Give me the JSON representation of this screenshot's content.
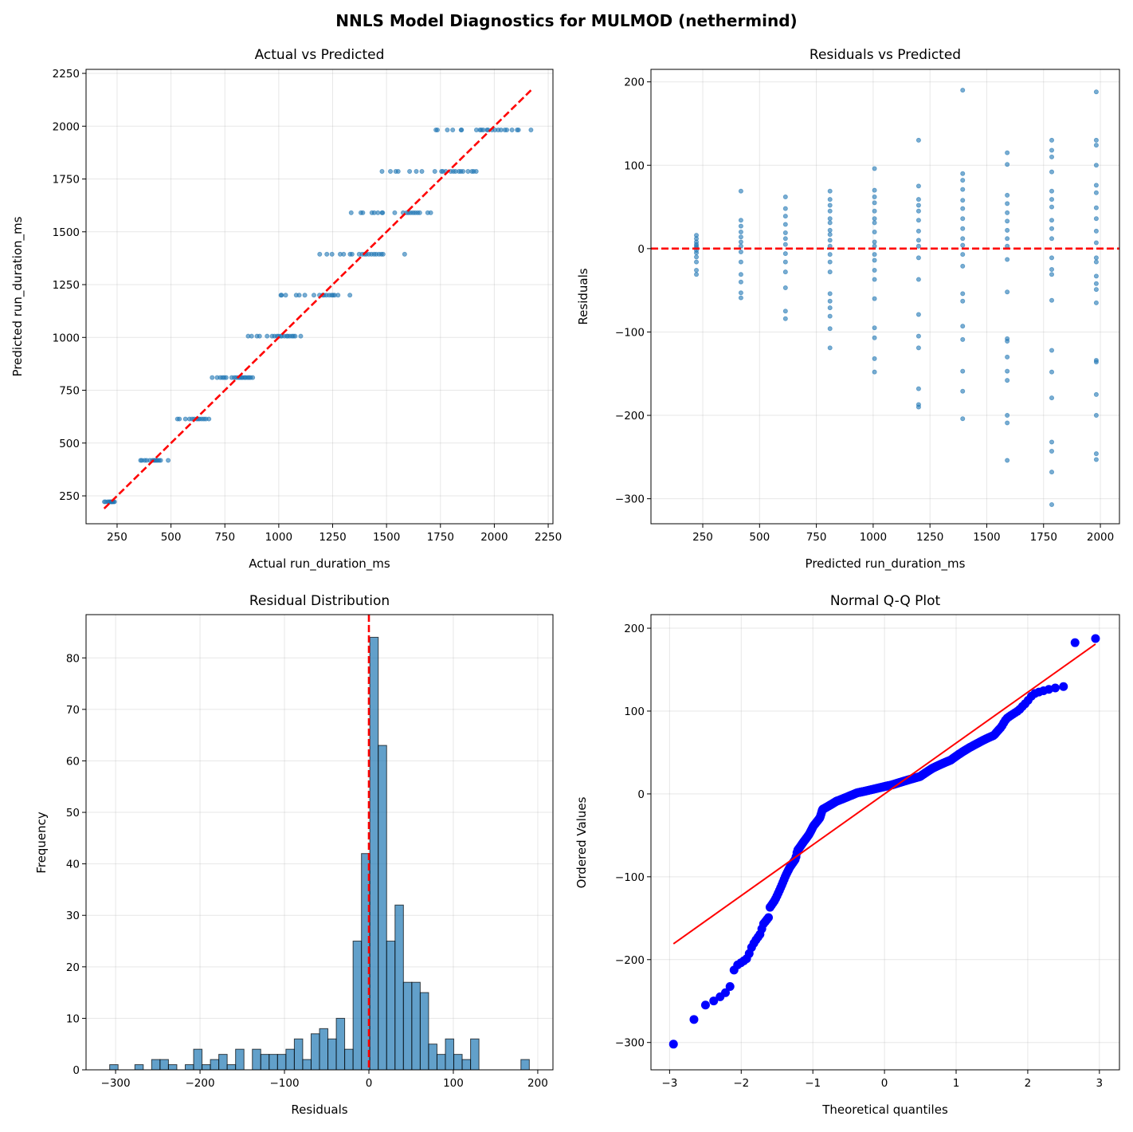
{
  "figure": {
    "title": "NNLS Model Diagnostics for MULMOD (nethermind)"
  },
  "colors": {
    "points": "#1f77b4",
    "reference": "#ff0000",
    "qq_points": "#0000ff",
    "grid": "#b0b0b0"
  },
  "observations_note_fields": [
    "predicted_run_duration_ms",
    "residual"
  ],
  "observations": [
    [
      222,
      16
    ],
    [
      222,
      12
    ],
    [
      222,
      8
    ],
    [
      222,
      5
    ],
    [
      222,
      3
    ],
    [
      222,
      1
    ],
    [
      222,
      -2
    ],
    [
      222,
      -5
    ],
    [
      222,
      -10
    ],
    [
      222,
      -16
    ],
    [
      222,
      -26
    ],
    [
      222,
      -31
    ],
    [
      418,
      69
    ],
    [
      418,
      34
    ],
    [
      418,
      27
    ],
    [
      418,
      20
    ],
    [
      418,
      14
    ],
    [
      418,
      8
    ],
    [
      418,
      3
    ],
    [
      418,
      -4
    ],
    [
      418,
      -16
    ],
    [
      418,
      -31
    ],
    [
      418,
      -40
    ],
    [
      418,
      -53
    ],
    [
      418,
      -59
    ],
    [
      614,
      62
    ],
    [
      614,
      48
    ],
    [
      614,
      39
    ],
    [
      614,
      29
    ],
    [
      614,
      19
    ],
    [
      614,
      12
    ],
    [
      614,
      5
    ],
    [
      614,
      -6
    ],
    [
      614,
      -16
    ],
    [
      614,
      -28
    ],
    [
      614,
      -47
    ],
    [
      614,
      -75
    ],
    [
      614,
      -84
    ],
    [
      810,
      69
    ],
    [
      810,
      59
    ],
    [
      810,
      52
    ],
    [
      810,
      45
    ],
    [
      810,
      36
    ],
    [
      810,
      31
    ],
    [
      810,
      22
    ],
    [
      810,
      17
    ],
    [
      810,
      10
    ],
    [
      810,
      3
    ],
    [
      810,
      -7
    ],
    [
      810,
      -16
    ],
    [
      810,
      -28
    ],
    [
      810,
      -54
    ],
    [
      810,
      -63
    ],
    [
      810,
      -71
    ],
    [
      810,
      -81
    ],
    [
      810,
      -96
    ],
    [
      810,
      -119
    ],
    [
      1006,
      96
    ],
    [
      1006,
      70
    ],
    [
      1006,
      62
    ],
    [
      1006,
      55
    ],
    [
      1006,
      45
    ],
    [
      1006,
      36
    ],
    [
      1006,
      31
    ],
    [
      1006,
      20
    ],
    [
      1006,
      8
    ],
    [
      1006,
      3
    ],
    [
      1006,
      -7
    ],
    [
      1006,
      -14
    ],
    [
      1006,
      -26
    ],
    [
      1006,
      -37
    ],
    [
      1006,
      -60
    ],
    [
      1006,
      -95
    ],
    [
      1006,
      -107
    ],
    [
      1006,
      -132
    ],
    [
      1006,
      -148
    ],
    [
      1200,
      130
    ],
    [
      1200,
      75
    ],
    [
      1200,
      59
    ],
    [
      1200,
      52
    ],
    [
      1200,
      45
    ],
    [
      1200,
      34
    ],
    [
      1200,
      21
    ],
    [
      1200,
      10
    ],
    [
      1200,
      3
    ],
    [
      1200,
      -11
    ],
    [
      1200,
      -37
    ],
    [
      1200,
      -79
    ],
    [
      1200,
      -105
    ],
    [
      1200,
      -119
    ],
    [
      1200,
      -168
    ],
    [
      1200,
      -187
    ],
    [
      1200,
      -190
    ],
    [
      1394,
      190
    ],
    [
      1394,
      90
    ],
    [
      1394,
      82
    ],
    [
      1394,
      71
    ],
    [
      1394,
      58
    ],
    [
      1394,
      48
    ],
    [
      1394,
      36
    ],
    [
      1394,
      24
    ],
    [
      1394,
      12
    ],
    [
      1394,
      4
    ],
    [
      1394,
      -7
    ],
    [
      1394,
      -21
    ],
    [
      1394,
      -54
    ],
    [
      1394,
      -63
    ],
    [
      1394,
      -93
    ],
    [
      1394,
      -109
    ],
    [
      1394,
      -147
    ],
    [
      1394,
      -171
    ],
    [
      1394,
      -204
    ],
    [
      1590,
      115
    ],
    [
      1590,
      101
    ],
    [
      1590,
      64
    ],
    [
      1590,
      54
    ],
    [
      1590,
      43
    ],
    [
      1590,
      33
    ],
    [
      1590,
      22
    ],
    [
      1590,
      12
    ],
    [
      1590,
      3
    ],
    [
      1590,
      -13
    ],
    [
      1590,
      -52
    ],
    [
      1590,
      -108
    ],
    [
      1590,
      -111
    ],
    [
      1590,
      -130
    ],
    [
      1590,
      -147
    ],
    [
      1590,
      -158
    ],
    [
      1590,
      -200
    ],
    [
      1590,
      -209
    ],
    [
      1590,
      -254
    ],
    [
      1786,
      130
    ],
    [
      1786,
      118
    ],
    [
      1786,
      110
    ],
    [
      1786,
      92
    ],
    [
      1786,
      69
    ],
    [
      1786,
      59
    ],
    [
      1786,
      50
    ],
    [
      1786,
      34
    ],
    [
      1786,
      24
    ],
    [
      1786,
      12
    ],
    [
      1786,
      -11
    ],
    [
      1786,
      -25
    ],
    [
      1786,
      -31
    ],
    [
      1786,
      -62
    ],
    [
      1786,
      -122
    ],
    [
      1786,
      -148
    ],
    [
      1786,
      -179
    ],
    [
      1786,
      -232
    ],
    [
      1786,
      -243
    ],
    [
      1786,
      -268
    ],
    [
      1786,
      -307
    ],
    [
      1982,
      188
    ],
    [
      1982,
      130
    ],
    [
      1982,
      124
    ],
    [
      1982,
      100
    ],
    [
      1982,
      76
    ],
    [
      1982,
      67
    ],
    [
      1982,
      49
    ],
    [
      1982,
      36
    ],
    [
      1982,
      21
    ],
    [
      1982,
      7
    ],
    [
      1982,
      -11
    ],
    [
      1982,
      -16
    ],
    [
      1982,
      -33
    ],
    [
      1982,
      -42
    ],
    [
      1982,
      -49
    ],
    [
      1982,
      -65
    ],
    [
      1982,
      -134
    ],
    [
      1982,
      -136
    ],
    [
      1982,
      -175
    ],
    [
      1982,
      -200
    ],
    [
      1982,
      -246
    ],
    [
      1982,
      -253
    ]
  ],
  "chart_data": [
    {
      "type": "scatter",
      "title": "Actual vs Predicted",
      "xlabel": "Actual run_duration_ms",
      "ylabel": "Predicted run_duration_ms",
      "x_source": "predicted + residual",
      "y_source": "predicted",
      "xlim": [
        106,
        2272
      ],
      "ylim": [
        118,
        2269
      ],
      "xticks": [
        250,
        500,
        750,
        1000,
        1250,
        1500,
        1750,
        2000,
        2250
      ],
      "yticks": [
        250,
        500,
        750,
        1000,
        1250,
        1500,
        1750,
        2000,
        2250
      ],
      "reference_line": {
        "style": "dashed",
        "from": [
          190,
          190
        ],
        "to": [
          2170,
          2170
        ]
      },
      "grid": true
    },
    {
      "type": "scatter",
      "title": "Residuals vs Predicted",
      "xlabel": "Predicted run_duration_ms",
      "ylabel": "Residuals",
      "xlim": [
        22,
        2084
      ],
      "ylim": [
        -330,
        215
      ],
      "xticks": [
        250,
        500,
        750,
        1000,
        1250,
        1500,
        1750,
        2000
      ],
      "yticks": [
        -300,
        -200,
        -100,
        0,
        100,
        200
      ],
      "reference_line": {
        "style": "dashed",
        "y": 0
      },
      "grid": true
    },
    {
      "type": "bar",
      "title": "Residual Distribution",
      "xlabel": "Residuals",
      "ylabel": "Frequency",
      "bin_start": -307,
      "bin_width": 9.94,
      "counts": [
        1,
        0,
        0,
        1,
        0,
        2,
        2,
        1,
        0,
        1,
        4,
        1,
        2,
        3,
        1,
        4,
        0,
        4,
        3,
        3,
        3,
        4,
        6,
        2,
        7,
        8,
        6,
        10,
        4,
        25,
        42,
        84,
        63,
        25,
        32,
        17,
        17,
        15,
        5,
        3,
        6,
        3,
        2,
        6,
        0,
        0,
        0,
        0,
        0,
        2
      ],
      "xlim": [
        -335,
        218
      ],
      "ylim": [
        0,
        88.4
      ],
      "xticks": [
        -300,
        -200,
        -100,
        0,
        100,
        200
      ],
      "yticks": [
        0,
        10,
        20,
        30,
        40,
        50,
        60,
        70,
        80
      ],
      "reference_line": {
        "style": "dashed",
        "x": 0
      },
      "grid": true
    },
    {
      "type": "scatter",
      "title": "Normal Q-Q Plot",
      "xlabel": "Theoretical quantiles",
      "ylabel": "Ordered Values",
      "xlim": [
        -3.26,
        3.28
      ],
      "ylim": [
        -333,
        216.4
      ],
      "xticks": [
        -3,
        -2,
        -1,
        0,
        1,
        2,
        3
      ],
      "yticks": [
        -300,
        -200,
        -100,
        0,
        100,
        200
      ],
      "fit_line": {
        "slope": 61.4,
        "intercept": 0
      },
      "grid": true
    }
  ]
}
